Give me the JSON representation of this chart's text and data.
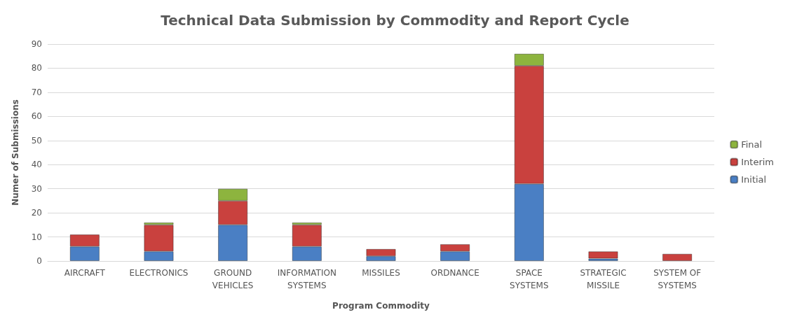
{
  "chart_data": {
    "type": "bar",
    "title": "Technical Data Submission by Commodity and Report Cycle",
    "xlabel": "Program Commodity",
    "ylabel": "Numer of Submissions",
    "categories": [
      "AIRCRAFT",
      "ELECTRONICS",
      "GROUND VEHICLES",
      "INFORMATION SYSTEMS",
      "MISSILES",
      "ORDNANCE",
      "SPACE SYSTEMS",
      "STRATEGIC MISSILE",
      "SYSTEM OF SYSTEMS"
    ],
    "series": [
      {
        "name": "Initial",
        "color": "#4a7fc4",
        "values": [
          6,
          4,
          15,
          6,
          2,
          4,
          32,
          1,
          null
        ]
      },
      {
        "name": "Interim",
        "color": "#c9413e",
        "values": [
          5,
          11,
          10,
          9,
          3,
          3,
          49,
          3,
          3
        ]
      },
      {
        "name": "Final",
        "color": "#8db43e",
        "values": [
          null,
          1,
          5,
          1,
          null,
          null,
          5,
          null,
          null
        ]
      }
    ],
    "stacked": true,
    "ylim": [
      0,
      90
    ],
    "yticks": [
      0,
      10,
      20,
      30,
      40,
      50,
      60,
      70,
      80,
      90
    ],
    "grid": "y",
    "legend": "right"
  }
}
